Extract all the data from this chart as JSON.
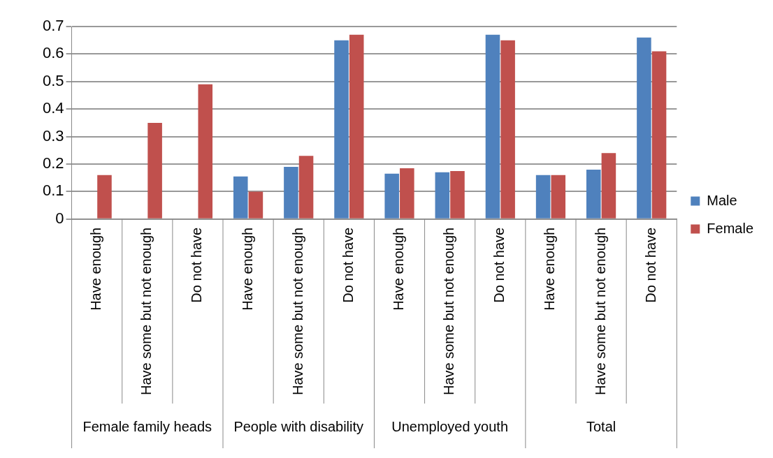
{
  "chart_data": {
    "type": "bar",
    "categories": [
      "Have enough",
      "Have some but not enough",
      "Do not have",
      "Have enough",
      "Have some but not enough",
      "Do not have",
      "Have enough",
      "Have some but not enough",
      "Do not have",
      "Have enough",
      "Have some but not enough",
      "Do not have"
    ],
    "series": [
      {
        "name": "Male",
        "color": "#4f81bd",
        "values": [
          null,
          null,
          null,
          0.155,
          0.19,
          0.65,
          0.165,
          0.17,
          0.67,
          0.16,
          0.18,
          0.66
        ]
      },
      {
        "name": "Female",
        "color": "#c0504d",
        "values": [
          0.16,
          0.35,
          0.49,
          0.1,
          0.23,
          0.67,
          0.185,
          0.175,
          0.65,
          0.16,
          0.24,
          0.61
        ]
      }
    ],
    "annotations": [
      "Female family heads",
      "People with disability",
      "Unemployed youth",
      "Total"
    ],
    "ylim": [
      0,
      0.7
    ],
    "yticks": [
      0,
      0.1,
      0.2,
      0.3,
      0.4,
      0.5,
      0.6,
      0.7
    ],
    "grid": "y",
    "legend": "right"
  }
}
